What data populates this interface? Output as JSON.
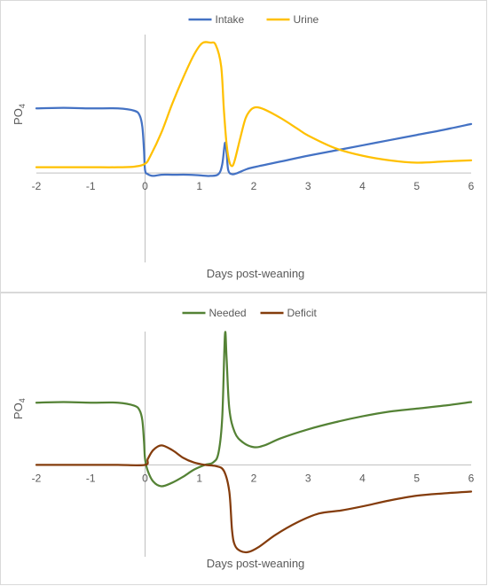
{
  "chart_data": [
    {
      "type": "line",
      "title": "",
      "xlabel": "Days post-weaning",
      "ylabel": "PO",
      "ylabel_sub": "4",
      "xlim": [
        -2,
        6
      ],
      "ylim": [
        -1.55,
        2.4
      ],
      "x_ticks": [
        "-2",
        "-1",
        "0",
        "1",
        "2",
        "3",
        "4",
        "5",
        "6"
      ],
      "grid": false,
      "legend": "top",
      "series": [
        {
          "name": "Intake",
          "color": "#4472c4",
          "points": [
            [
              -2,
              1.12
            ],
            [
              -1.5,
              1.13
            ],
            [
              -1,
              1.12
            ],
            [
              -0.5,
              1.12
            ],
            [
              -0.2,
              1.08
            ],
            [
              -0.1,
              1.0
            ],
            [
              -0.05,
              0.8
            ],
            [
              -0.02,
              0.4
            ],
            [
              0,
              0.05
            ],
            [
              0.05,
              -0.02
            ],
            [
              0.15,
              -0.05
            ],
            [
              0.3,
              -0.03
            ],
            [
              0.5,
              -0.03
            ],
            [
              0.8,
              -0.03
            ],
            [
              1.0,
              -0.04
            ],
            [
              1.2,
              -0.05
            ],
            [
              1.35,
              -0.02
            ],
            [
              1.42,
              0.15
            ],
            [
              1.47,
              0.52
            ],
            [
              1.5,
              0.35
            ],
            [
              1.53,
              0.05
            ],
            [
              1.6,
              -0.02
            ],
            [
              1.7,
              0.0
            ],
            [
              1.85,
              0.06
            ],
            [
              2.0,
              0.1
            ],
            [
              2.5,
              0.2
            ],
            [
              3,
              0.3
            ],
            [
              3.5,
              0.39
            ],
            [
              4,
              0.48
            ],
            [
              4.5,
              0.57
            ],
            [
              5,
              0.66
            ],
            [
              5.5,
              0.75
            ],
            [
              6,
              0.85
            ]
          ]
        },
        {
          "name": "Urine",
          "color": "#ffc000",
          "points": [
            [
              -2,
              0.1
            ],
            [
              -1.5,
              0.1
            ],
            [
              -1,
              0.1
            ],
            [
              -0.5,
              0.1
            ],
            [
              -0.2,
              0.11
            ],
            [
              0,
              0.16
            ],
            [
              0.1,
              0.3
            ],
            [
              0.3,
              0.7
            ],
            [
              0.5,
              1.2
            ],
            [
              0.7,
              1.65
            ],
            [
              0.9,
              2.05
            ],
            [
              1.05,
              2.25
            ],
            [
              1.2,
              2.26
            ],
            [
              1.3,
              2.22
            ],
            [
              1.4,
              1.85
            ],
            [
              1.45,
              1.1
            ],
            [
              1.5,
              0.5
            ],
            [
              1.55,
              0.2
            ],
            [
              1.6,
              0.12
            ],
            [
              1.65,
              0.22
            ],
            [
              1.75,
              0.6
            ],
            [
              1.85,
              0.95
            ],
            [
              1.95,
              1.1
            ],
            [
              2.05,
              1.14
            ],
            [
              2.2,
              1.1
            ],
            [
              2.5,
              0.95
            ],
            [
              2.8,
              0.77
            ],
            [
              3,
              0.65
            ],
            [
              3.5,
              0.43
            ],
            [
              4,
              0.3
            ],
            [
              4.5,
              0.22
            ],
            [
              5,
              0.18
            ],
            [
              5.5,
              0.2
            ],
            [
              6,
              0.22
            ]
          ]
        }
      ]
    },
    {
      "type": "line",
      "title": "",
      "xlabel": "Days post-weaning",
      "ylabel": "PO",
      "ylabel_sub": "4",
      "xlim": [
        -2,
        6
      ],
      "ylim": [
        -1.55,
        2.25
      ],
      "x_ticks": [
        "-2",
        "-1",
        "0",
        "1",
        "2",
        "3",
        "4",
        "5",
        "6"
      ],
      "grid": false,
      "legend": "top",
      "series": [
        {
          "name": "Needed",
          "color": "#548235",
          "points": [
            [
              -2,
              1.05
            ],
            [
              -1.5,
              1.06
            ],
            [
              -1,
              1.05
            ],
            [
              -0.5,
              1.05
            ],
            [
              -0.2,
              1.0
            ],
            [
              -0.1,
              0.92
            ],
            [
              -0.05,
              0.75
            ],
            [
              -0.02,
              0.4
            ],
            [
              0,
              0.1
            ],
            [
              0.05,
              -0.1
            ],
            [
              0.15,
              -0.28
            ],
            [
              0.3,
              -0.36
            ],
            [
              0.5,
              -0.3
            ],
            [
              0.7,
              -0.2
            ],
            [
              0.9,
              -0.08
            ],
            [
              1.1,
              0.0
            ],
            [
              1.25,
              0.04
            ],
            [
              1.35,
              0.2
            ],
            [
              1.42,
              0.8
            ],
            [
              1.47,
              2.2
            ],
            [
              1.5,
              1.8
            ],
            [
              1.55,
              0.95
            ],
            [
              1.65,
              0.55
            ],
            [
              1.8,
              0.38
            ],
            [
              2.0,
              0.3
            ],
            [
              2.2,
              0.33
            ],
            [
              2.5,
              0.45
            ],
            [
              3,
              0.6
            ],
            [
              3.5,
              0.72
            ],
            [
              4,
              0.82
            ],
            [
              4.5,
              0.9
            ],
            [
              5,
              0.95
            ],
            [
              5.5,
              1.0
            ],
            [
              6,
              1.06
            ]
          ]
        },
        {
          "name": "Deficit",
          "color": "#843c0c",
          "points": [
            [
              -2,
              0.0
            ],
            [
              -1.5,
              0.0
            ],
            [
              -1,
              0.0
            ],
            [
              -0.5,
              0.0
            ],
            [
              0,
              0.0
            ],
            [
              0.05,
              0.1
            ],
            [
              0.15,
              0.25
            ],
            [
              0.3,
              0.33
            ],
            [
              0.5,
              0.25
            ],
            [
              0.7,
              0.12
            ],
            [
              0.9,
              0.04
            ],
            [
              1.1,
              0.0
            ],
            [
              1.3,
              -0.02
            ],
            [
              1.45,
              -0.1
            ],
            [
              1.55,
              -0.45
            ],
            [
              1.6,
              -1.1
            ],
            [
              1.65,
              -1.35
            ],
            [
              1.75,
              -1.45
            ],
            [
              1.9,
              -1.47
            ],
            [
              2.1,
              -1.38
            ],
            [
              2.4,
              -1.18
            ],
            [
              2.8,
              -0.97
            ],
            [
              3.2,
              -0.82
            ],
            [
              3.6,
              -0.77
            ],
            [
              4,
              -0.7
            ],
            [
              4.5,
              -0.6
            ],
            [
              5,
              -0.52
            ],
            [
              5.5,
              -0.48
            ],
            [
              6,
              -0.45
            ]
          ]
        }
      ]
    }
  ]
}
